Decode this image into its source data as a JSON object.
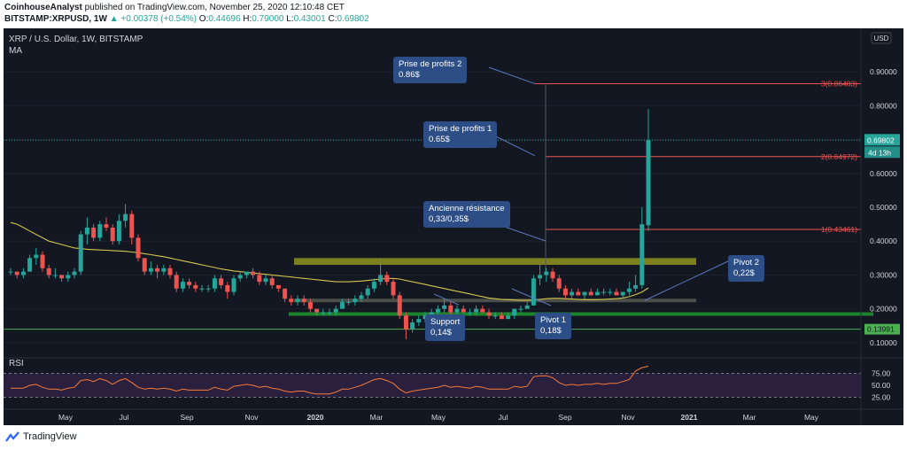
{
  "header": {
    "author": "CoinhouseAnalyst",
    "published": "published on TradingView.com, November 25, 2020 12:10:48 CET",
    "symbol": "BITSTAMP:XRPUSD, 1W",
    "change": "▲ +0.00378 (+0.54%)",
    "o_label": "O:",
    "o_value": "0.44696",
    "h_label": "H:",
    "h_value": "0.79000",
    "l_label": "L:",
    "l_value": "0.43001",
    "c_label": "C:",
    "c_value": "0.69802"
  },
  "legend": {
    "title": "XRP / U.S. Dollar, 1W, BITSTAMP",
    "ma": "MA"
  },
  "price_scale": {
    "currency": "USD",
    "ticks": [
      "0.90000",
      "0.80000",
      "0.70000",
      "0.60000",
      "0.50000",
      "0.40000",
      "0.30000",
      "0.20000",
      "0.10000"
    ],
    "last_price": "0.69802",
    "countdown": "4d 13h",
    "support_tag": "0.13991"
  },
  "fib_levels": [
    {
      "label": "3(0.86483)",
      "value": 0.86483
    },
    {
      "label": "2(0.64972)",
      "value": 0.64972
    },
    {
      "label": "1(0.43461)",
      "value": 0.43461
    }
  ],
  "annotations": {
    "tp2_line1": "Prise de profits 2",
    "tp2_line2": "0.86$",
    "tp1_line1": "Prise de profits 1",
    "tp1_line2": "0.65$",
    "res_line1": "Ancienne résistance",
    "res_line2": "0,33/0,35$",
    "support_line1": "Support",
    "support_line2": "0,14$",
    "pivot1_line1": "Pivot 1",
    "pivot1_line2": "0,18$",
    "pivot2_line1": "Pivot 2",
    "pivot2_line2": "0,22$"
  },
  "rsi": {
    "label": "RSI",
    "ticks": [
      "75.00",
      "50.00",
      "25.00"
    ]
  },
  "time_axis": [
    "May",
    "Jul",
    "Sep",
    "Nov",
    "2020",
    "Mar",
    "May",
    "Jul",
    "Sep",
    "Nov",
    "2021",
    "Mar",
    "May"
  ],
  "footer": {
    "brand": "TradingView"
  },
  "colors": {
    "up": "#26a69a",
    "down": "#ef5350",
    "background": "#131722",
    "ma": "#d5c54a",
    "rsi": "#f57c38",
    "annotation": "#2d4d86"
  },
  "chart_data": {
    "type": "candlestick",
    "title": "XRP / U.S. Dollar, 1W, BITSTAMP",
    "ylim": [
      0.05,
      0.95
    ],
    "candles": [
      [
        0.31,
        0.32,
        0.3,
        0.31
      ],
      [
        0.31,
        0.31,
        0.29,
        0.3
      ],
      [
        0.3,
        0.32,
        0.29,
        0.31
      ],
      [
        0.31,
        0.36,
        0.31,
        0.35
      ],
      [
        0.35,
        0.38,
        0.33,
        0.36
      ],
      [
        0.36,
        0.37,
        0.31,
        0.32
      ],
      [
        0.32,
        0.33,
        0.29,
        0.3
      ],
      [
        0.3,
        0.32,
        0.29,
        0.3
      ],
      [
        0.3,
        0.3,
        0.28,
        0.29
      ],
      [
        0.29,
        0.31,
        0.28,
        0.3
      ],
      [
        0.3,
        0.32,
        0.29,
        0.31
      ],
      [
        0.31,
        0.43,
        0.3,
        0.42
      ],
      [
        0.42,
        0.47,
        0.39,
        0.44
      ],
      [
        0.44,
        0.45,
        0.4,
        0.41
      ],
      [
        0.41,
        0.46,
        0.4,
        0.45
      ],
      [
        0.45,
        0.47,
        0.43,
        0.44
      ],
      [
        0.44,
        0.45,
        0.39,
        0.4
      ],
      [
        0.4,
        0.48,
        0.39,
        0.46
      ],
      [
        0.46,
        0.51,
        0.44,
        0.48
      ],
      [
        0.48,
        0.49,
        0.39,
        0.41
      ],
      [
        0.41,
        0.42,
        0.34,
        0.35
      ],
      [
        0.35,
        0.35,
        0.3,
        0.31
      ],
      [
        0.31,
        0.34,
        0.3,
        0.32
      ],
      [
        0.32,
        0.33,
        0.29,
        0.31
      ],
      [
        0.31,
        0.33,
        0.3,
        0.32
      ],
      [
        0.32,
        0.33,
        0.29,
        0.3
      ],
      [
        0.3,
        0.31,
        0.25,
        0.26
      ],
      [
        0.26,
        0.29,
        0.25,
        0.28
      ],
      [
        0.28,
        0.29,
        0.26,
        0.27
      ],
      [
        0.27,
        0.28,
        0.25,
        0.26
      ],
      [
        0.26,
        0.27,
        0.25,
        0.26
      ],
      [
        0.26,
        0.27,
        0.25,
        0.26
      ],
      [
        0.26,
        0.3,
        0.25,
        0.29
      ],
      [
        0.29,
        0.3,
        0.26,
        0.27
      ],
      [
        0.27,
        0.28,
        0.23,
        0.25
      ],
      [
        0.25,
        0.3,
        0.24,
        0.29
      ],
      [
        0.29,
        0.31,
        0.28,
        0.3
      ],
      [
        0.3,
        0.31,
        0.29,
        0.31
      ],
      [
        0.31,
        0.32,
        0.29,
        0.3
      ],
      [
        0.3,
        0.31,
        0.27,
        0.28
      ],
      [
        0.28,
        0.3,
        0.27,
        0.29
      ],
      [
        0.29,
        0.3,
        0.26,
        0.27
      ],
      [
        0.27,
        0.27,
        0.25,
        0.26
      ],
      [
        0.26,
        0.26,
        0.22,
        0.23
      ],
      [
        0.23,
        0.24,
        0.21,
        0.22
      ],
      [
        0.22,
        0.24,
        0.21,
        0.23
      ],
      [
        0.23,
        0.24,
        0.21,
        0.22
      ],
      [
        0.22,
        0.23,
        0.19,
        0.2
      ],
      [
        0.2,
        0.2,
        0.18,
        0.19
      ],
      [
        0.19,
        0.2,
        0.18,
        0.19
      ],
      [
        0.19,
        0.2,
        0.18,
        0.19
      ],
      [
        0.19,
        0.21,
        0.18,
        0.2
      ],
      [
        0.2,
        0.23,
        0.2,
        0.22
      ],
      [
        0.22,
        0.23,
        0.21,
        0.22
      ],
      [
        0.22,
        0.24,
        0.21,
        0.23
      ],
      [
        0.23,
        0.25,
        0.22,
        0.24
      ],
      [
        0.24,
        0.27,
        0.23,
        0.26
      ],
      [
        0.26,
        0.29,
        0.25,
        0.28
      ],
      [
        0.28,
        0.35,
        0.27,
        0.3
      ],
      [
        0.3,
        0.31,
        0.27,
        0.28
      ],
      [
        0.28,
        0.29,
        0.23,
        0.24
      ],
      [
        0.24,
        0.25,
        0.17,
        0.18
      ],
      [
        0.18,
        0.19,
        0.11,
        0.14
      ],
      [
        0.14,
        0.17,
        0.13,
        0.16
      ],
      [
        0.16,
        0.18,
        0.15,
        0.17
      ],
      [
        0.17,
        0.19,
        0.16,
        0.18
      ],
      [
        0.18,
        0.2,
        0.17,
        0.19
      ],
      [
        0.19,
        0.21,
        0.18,
        0.2
      ],
      [
        0.2,
        0.23,
        0.19,
        0.21
      ],
      [
        0.21,
        0.22,
        0.18,
        0.19
      ],
      [
        0.19,
        0.21,
        0.18,
        0.2
      ],
      [
        0.2,
        0.21,
        0.19,
        0.19
      ],
      [
        0.19,
        0.2,
        0.18,
        0.19
      ],
      [
        0.19,
        0.21,
        0.18,
        0.2
      ],
      [
        0.2,
        0.21,
        0.19,
        0.19
      ],
      [
        0.19,
        0.2,
        0.17,
        0.18
      ],
      [
        0.18,
        0.19,
        0.17,
        0.18
      ],
      [
        0.18,
        0.19,
        0.17,
        0.17
      ],
      [
        0.17,
        0.19,
        0.17,
        0.18
      ],
      [
        0.18,
        0.2,
        0.17,
        0.2
      ],
      [
        0.2,
        0.21,
        0.19,
        0.2
      ],
      [
        0.2,
        0.22,
        0.2,
        0.21
      ],
      [
        0.21,
        0.3,
        0.21,
        0.29
      ],
      [
        0.29,
        0.33,
        0.27,
        0.3
      ],
      [
        0.3,
        0.32,
        0.28,
        0.31
      ],
      [
        0.31,
        0.32,
        0.28,
        0.29
      ],
      [
        0.29,
        0.3,
        0.25,
        0.26
      ],
      [
        0.26,
        0.27,
        0.23,
        0.24
      ],
      [
        0.24,
        0.26,
        0.23,
        0.25
      ],
      [
        0.25,
        0.26,
        0.24,
        0.24
      ],
      [
        0.24,
        0.25,
        0.23,
        0.25
      ],
      [
        0.25,
        0.26,
        0.24,
        0.24
      ],
      [
        0.24,
        0.26,
        0.24,
        0.25
      ],
      [
        0.25,
        0.26,
        0.24,
        0.25
      ],
      [
        0.25,
        0.26,
        0.24,
        0.25
      ],
      [
        0.25,
        0.26,
        0.24,
        0.24
      ],
      [
        0.24,
        0.25,
        0.23,
        0.25
      ],
      [
        0.25,
        0.28,
        0.24,
        0.26
      ],
      [
        0.26,
        0.3,
        0.25,
        0.27
      ],
      [
        0.27,
        0.5,
        0.26,
        0.45
      ],
      [
        0.44696,
        0.79,
        0.43001,
        0.69802
      ]
    ],
    "moving_average": [
      0.455,
      0.45,
      0.44,
      0.43,
      0.42,
      0.41,
      0.4,
      0.395,
      0.39,
      0.385,
      0.38,
      0.378,
      0.376,
      0.375,
      0.374,
      0.373,
      0.372,
      0.371,
      0.37,
      0.368,
      0.366,
      0.363,
      0.36,
      0.357,
      0.354,
      0.35,
      0.346,
      0.342,
      0.338,
      0.334,
      0.33,
      0.326,
      0.322,
      0.318,
      0.315,
      0.312,
      0.31,
      0.308,
      0.306,
      0.304,
      0.302,
      0.3,
      0.298,
      0.296,
      0.294,
      0.292,
      0.29,
      0.288,
      0.286,
      0.284,
      0.282,
      0.28,
      0.28,
      0.28,
      0.281,
      0.282,
      0.284,
      0.286,
      0.288,
      0.29,
      0.29,
      0.288,
      0.284,
      0.28,
      0.276,
      0.272,
      0.268,
      0.264,
      0.26,
      0.256,
      0.252,
      0.248,
      0.244,
      0.24,
      0.236,
      0.232,
      0.23,
      0.228,
      0.227,
      0.226,
      0.225,
      0.225,
      0.226,
      0.228,
      0.23,
      0.231,
      0.231,
      0.23,
      0.229,
      0.228,
      0.227,
      0.227,
      0.227,
      0.228,
      0.229,
      0.23,
      0.232,
      0.236,
      0.242,
      0.25,
      0.262
    ],
    "rsi_values": [
      44,
      44,
      44,
      50,
      52,
      46,
      42,
      42,
      40,
      44,
      46,
      60,
      62,
      58,
      64,
      60,
      52,
      60,
      64,
      56,
      46,
      42,
      44,
      42,
      44,
      42,
      38,
      42,
      40,
      40,
      40,
      40,
      46,
      42,
      40,
      48,
      50,
      52,
      50,
      46,
      48,
      44,
      42,
      38,
      36,
      38,
      38,
      34,
      32,
      32,
      32,
      36,
      42,
      42,
      46,
      50,
      56,
      62,
      64,
      60,
      54,
      42,
      34,
      38,
      40,
      42,
      44,
      46,
      50,
      46,
      48,
      46,
      44,
      48,
      46,
      42,
      42,
      42,
      42,
      48,
      46,
      48,
      68,
      70,
      70,
      66,
      56,
      50,
      52,
      50,
      52,
      52,
      54,
      52,
      54,
      54,
      58,
      62,
      80,
      87,
      90
    ],
    "rsi_range": [
      25,
      75
    ],
    "zones": [
      {
        "kind": "resistance",
        "from": 0.33,
        "to": 0.35
      },
      {
        "kind": "pivot",
        "from": 0.22,
        "to": 0.23
      },
      {
        "kind": "pivot",
        "from": 0.18,
        "to": 0.19
      },
      {
        "kind": "support",
        "value": 0.13991
      }
    ]
  }
}
